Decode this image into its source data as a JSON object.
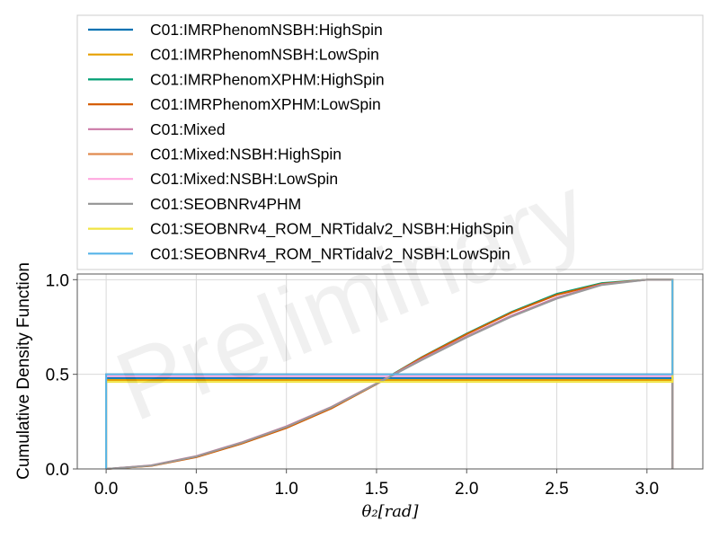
{
  "chart_data": {
    "type": "line",
    "title": "",
    "xlabel": "θ₂[rad]",
    "ylabel": "Cumulative Density Function",
    "xlim": [
      -0.16,
      3.31
    ],
    "ylim": [
      0,
      1.03
    ],
    "x_ticks": [
      "0.0",
      "0.5",
      "1.0",
      "1.5",
      "2.0",
      "2.5",
      "3.0"
    ],
    "y_ticks": [
      "0.0",
      "0.5",
      "1.0"
    ],
    "grid": true,
    "legend_position": "top (above plot)",
    "watermark": "Preliminary",
    "x_step_curves": [
      0,
      0.25,
      0.5,
      0.75,
      1.0,
      1.25,
      1.5,
      1.75,
      2.0,
      2.25,
      2.5,
      2.75,
      3.0,
      3.1416
    ],
    "series": [
      {
        "name": "C01:IMRPhenomNSBH:HighSpin",
        "color": "#0072b2",
        "kind": "step",
        "level": 0.48
      },
      {
        "name": "C01:IMRPhenomNSBH:LowSpin",
        "color": "#e69f00",
        "kind": "step",
        "level": 0.47
      },
      {
        "name": "C01:IMRPhenomXPHM:HighSpin",
        "color": "#009e73",
        "kind": "cdf",
        "values": [
          0,
          0.017,
          0.064,
          0.134,
          0.218,
          0.322,
          0.45,
          0.59,
          0.715,
          0.83,
          0.925,
          0.982,
          1.0,
          1.0
        ]
      },
      {
        "name": "C01:IMRPhenomXPHM:LowSpin",
        "color": "#d55e00",
        "kind": "cdf",
        "values": [
          0,
          0.016,
          0.062,
          0.133,
          0.216,
          0.32,
          0.448,
          0.588,
          0.712,
          0.826,
          0.92,
          0.978,
          1.0,
          1.0
        ]
      },
      {
        "name": "C01:Mixed",
        "color": "#cc79a7",
        "kind": "cdf",
        "values": [
          0,
          0.019,
          0.068,
          0.14,
          0.225,
          0.328,
          0.452,
          0.58,
          0.7,
          0.81,
          0.905,
          0.975,
          1.0,
          1.0
        ]
      },
      {
        "name": "C01:Mixed:NSBH:HighSpin",
        "color": "#e08a4f",
        "kind": "step",
        "level": 0.5
      },
      {
        "name": "C01:Mixed:NSBH:LowSpin",
        "color": "#ffa8e0",
        "kind": "step",
        "level": 0.49
      },
      {
        "name": "C01:SEOBNRv4PHM",
        "color": "#999999",
        "kind": "cdf",
        "values": [
          0,
          0.018,
          0.066,
          0.138,
          0.222,
          0.326,
          0.45,
          0.575,
          0.695,
          0.805,
          0.9,
          0.972,
          1.0,
          1.0
        ]
      },
      {
        "name": "C01:SEOBNRv4_ROM_NRTidalv2_NSBH:HighSpin",
        "color": "#f0e442",
        "kind": "step",
        "level": 0.46
      },
      {
        "name": "C01:SEOBNRv4_ROM_NRTidalv2_NSBH:LowSpin",
        "color": "#56b4e9",
        "kind": "step",
        "level": 0.5
      }
    ]
  }
}
